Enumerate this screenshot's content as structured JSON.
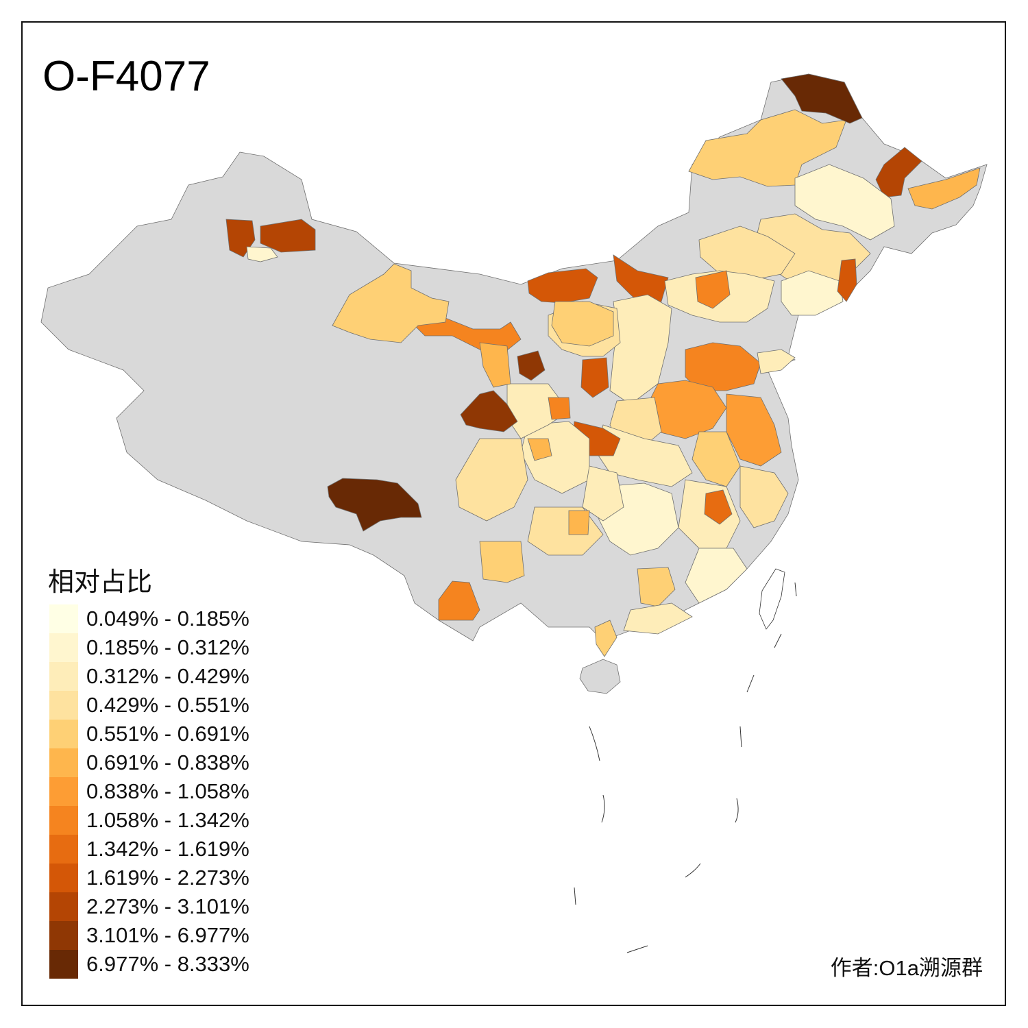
{
  "title": "O-F4077",
  "legend": {
    "title": "相对占比",
    "classes": [
      {
        "label": "0.049% - 0.185%",
        "color": "#ffffe5"
      },
      {
        "label": "0.185% - 0.312%",
        "color": "#fff6cf"
      },
      {
        "label": "0.312% - 0.429%",
        "color": "#feedb9"
      },
      {
        "label": "0.429% - 0.551%",
        "color": "#fee29f"
      },
      {
        "label": "0.551% - 0.691%",
        "color": "#fed075"
      },
      {
        "label": "0.691% - 0.838%",
        "color": "#feb64d"
      },
      {
        "label": "0.838% - 1.058%",
        "color": "#fd9d34"
      },
      {
        "label": "1.058% - 1.342%",
        "color": "#f5841f"
      },
      {
        "label": "1.342% - 1.619%",
        "color": "#e76c11"
      },
      {
        "label": "1.619% - 2.273%",
        "color": "#d45707"
      },
      {
        "label": "2.273% - 3.101%",
        "color": "#b44504"
      },
      {
        "label": "3.101% - 6.977%",
        "color": "#8f3704"
      },
      {
        "label": "6.977% - 8.333%",
        "color": "#682905"
      }
    ]
  },
  "no_data_color": "#d9d9d9",
  "author": "作者:O1a溯源群"
}
